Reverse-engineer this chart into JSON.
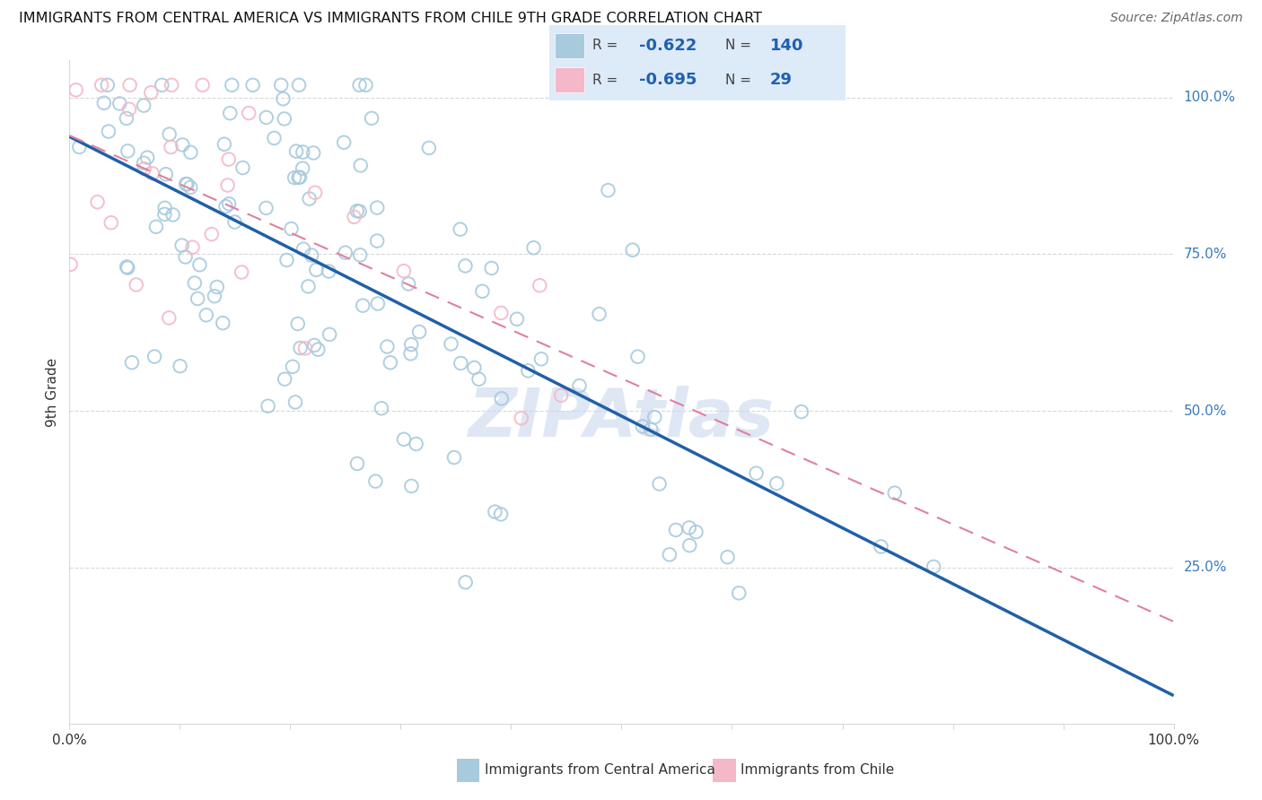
{
  "title": "IMMIGRANTS FROM CENTRAL AMERICA VS IMMIGRANTS FROM CHILE 9TH GRADE CORRELATION CHART",
  "source": "Source: ZipAtlas.com",
  "ylabel": "9th Grade",
  "legend_label1": "Immigrants from Central America",
  "legend_label2": "Immigrants from Chile",
  "R1": -0.622,
  "N1": 140,
  "R2": -0.695,
  "N2": 29,
  "color_blue": "#a8cadd",
  "color_pink": "#f4b8c8",
  "trendline_blue": "#2060a8",
  "trendline_pink": "#e080a0",
  "legend_bg": "#ddeaf8",
  "watermark_color": "#c8d8ec",
  "right_label_color": "#3a7abf",
  "grid_color": "#d8d8d8",
  "title_color": "#111111",
  "source_color": "#666666",
  "label_color": "#333333",
  "stat_color": "#2060b0",
  "xmin": 0.0,
  "xmax": 1.0,
  "ymin": 0.0,
  "ymax": 1.06
}
